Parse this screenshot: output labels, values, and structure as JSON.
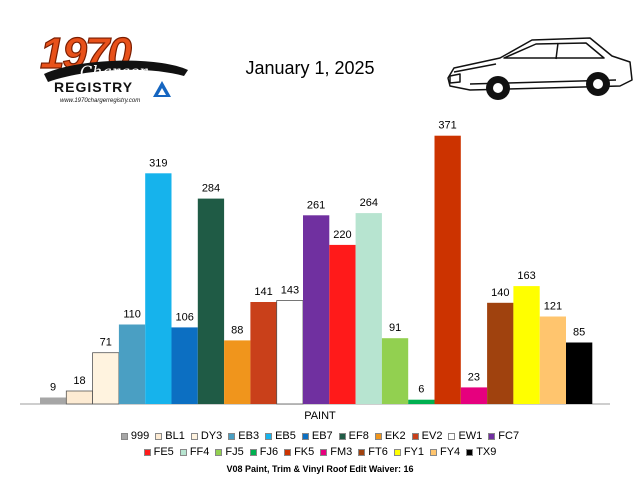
{
  "header": {
    "logo_text": "1970 Charger REGISTRY",
    "logo_url": "www.1970chargerregistry.com",
    "date": "January 1, 2025"
  },
  "footnote": "V08 Paint, Trim & Vinyl Roof Edit Waiver: 16",
  "colors": {
    "999": "#a6a6a6",
    "BL1": "#fdebd3",
    "DY3": "#fff3df",
    "EB3": "#4a9fc3",
    "EB5": "#16b3ec",
    "EB7": "#0c6fc2",
    "EF8": "#1f5b45",
    "EK2": "#f0951c",
    "EV2": "#c9401a",
    "EW1": "#ffffff",
    "FC7": "#7030a0",
    "FE5": "#ff1a1a",
    "FF4": "#b7e4d0",
    "FJ5": "#92d050",
    "FJ6": "#00b050",
    "FM3": "#e6007e",
    "FK5": "#cc3300",
    "FT6": "#a0420e",
    "FY1": "#ffff00",
    "FY4": "#ffc56e",
    "TX9": "#000000"
  },
  "chart_data": {
    "type": "bar",
    "title": "January 1, 2025",
    "xlabel": "PAINT",
    "ylabel": "",
    "ylim": [
      0,
      390
    ],
    "grid": false,
    "legend_position": "bottom",
    "categories": [
      "PAINT"
    ],
    "series": [
      {
        "name": "999",
        "values": [
          9
        ]
      },
      {
        "name": "BL1",
        "values": [
          18
        ]
      },
      {
        "name": "DY3",
        "values": [
          71
        ]
      },
      {
        "name": "EB3",
        "values": [
          110
        ]
      },
      {
        "name": "EB5",
        "values": [
          319
        ]
      },
      {
        "name": "EB7",
        "values": [
          106
        ]
      },
      {
        "name": "EF8",
        "values": [
          284
        ]
      },
      {
        "name": "EK2",
        "values": [
          88
        ]
      },
      {
        "name": "EV2",
        "values": [
          141
        ]
      },
      {
        "name": "EW1",
        "values": [
          143
        ]
      },
      {
        "name": "FC7",
        "values": [
          261
        ]
      },
      {
        "name": "FE5",
        "values": [
          220
        ]
      },
      {
        "name": "FF4",
        "values": [
          264
        ]
      },
      {
        "name": "FJ5",
        "values": [
          91
        ]
      },
      {
        "name": "FJ6",
        "values": [
          6
        ]
      },
      {
        "name": "FK5",
        "values": [
          371
        ]
      },
      {
        "name": "FM3",
        "values": [
          23
        ]
      },
      {
        "name": "FT6",
        "values": [
          140
        ]
      },
      {
        "name": "FY1",
        "values": [
          163
        ]
      },
      {
        "name": "FY4",
        "values": [
          121
        ]
      },
      {
        "name": "TX9",
        "values": [
          85
        ]
      }
    ],
    "legend_rows": [
      [
        "999",
        "BL1",
        "DY3",
        "EB3",
        "EB5",
        "EB7",
        "EF8",
        "EK2",
        "EV2",
        "EW1",
        "FC7"
      ],
      [
        "FE5",
        "FF4",
        "FJ5",
        "FJ6",
        "FK5",
        "FM3",
        "FT6",
        "FY1",
        "FY4",
        "TX9"
      ]
    ]
  }
}
